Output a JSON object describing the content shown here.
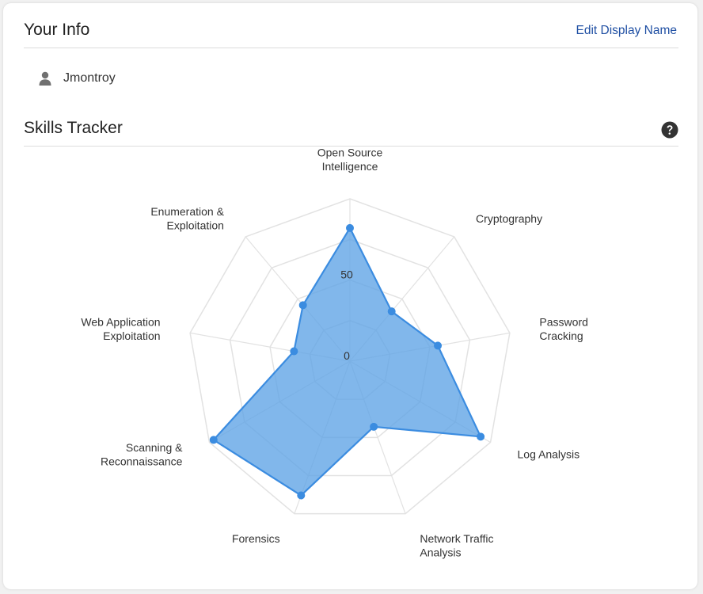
{
  "your_info": {
    "title": "Your Info",
    "edit_link": "Edit Display Name",
    "username": "Jmontroy",
    "user_icon": "user-icon"
  },
  "skills_tracker": {
    "title": "Skills Tracker",
    "help_icon": "question-circle-icon"
  },
  "colors": {
    "series_fill": "#5ea3e6",
    "series_stroke": "#3b8ce0",
    "grid": "#e2e2e2",
    "link": "#1f4fa3"
  },
  "chart_data": {
    "type": "radar",
    "categories": [
      [
        "Open Source",
        "Intelligence"
      ],
      [
        "Cryptography"
      ],
      [
        "Password",
        "Cracking"
      ],
      [
        "Log Analysis"
      ],
      [
        "Network Traffic",
        "Analysis"
      ],
      [
        "Forensics"
      ],
      [
        "Scanning &",
        "Reconnaissance"
      ],
      [
        "Web Application",
        "Exploitation"
      ],
      [
        "Enumeration &",
        "Exploitation"
      ]
    ],
    "values": [
      82,
      40,
      55,
      93,
      43,
      88,
      97,
      35,
      45
    ],
    "range": [
      0,
      100
    ],
    "tick_labels": [
      "0",
      "50"
    ],
    "grid_rings": 4
  }
}
